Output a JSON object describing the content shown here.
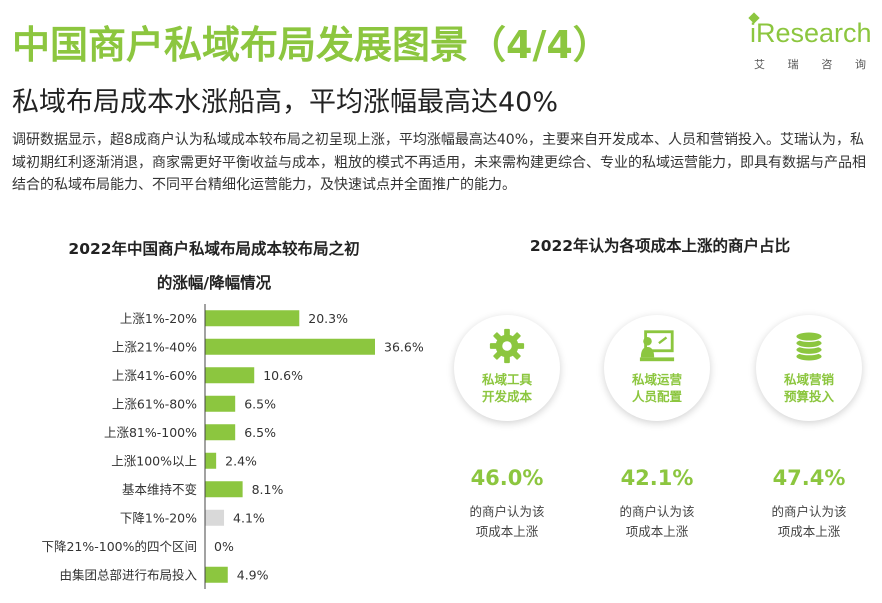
{
  "header": {
    "title": "中国商户私域布局发展图景（4/4）",
    "subtitle": "私域布局成本水涨船高，平均涨幅最高达40%"
  },
  "logo": {
    "wordmark": "iResearch",
    "cn_chars": [
      "艾",
      "瑞",
      "咨",
      "询"
    ]
  },
  "intro": "调研数据显示，超8成商户认为私域成本较布局之初呈现上涨，平均涨幅最高达40%，主要来自开发成本、人员和营销投入。艾瑞认为，私域初期红利逐渐消退，商家需更好平衡收益与成本，粗放的模式不再适用，未来需构建更综合、专业的私域运营能力，即具有数据与产品相结合的私域布局能力、不同平台精细化运营能力，及快速试点并全面推广的能力。",
  "colors": {
    "accent": "#8cc63f",
    "decline": "#d9d9d9",
    "axis": "#444444"
  },
  "chart_data": [
    {
      "type": "bar",
      "orientation": "horizontal",
      "title": "2022年中国商户私域布局成本较布局之初的涨幅/降幅情况",
      "title_lines": [
        "2022年中国商户私域布局成本较布局之初",
        "的涨幅/降幅情况"
      ],
      "categories": [
        "上涨1%-20%",
        "上涨21%-40%",
        "上涨41%-60%",
        "上涨61%-80%",
        "上涨81%-100%",
        "上涨100%以上",
        "基本维持不变",
        "下降1%-20%",
        "下降21%-100%的四个区间",
        "由集团总部进行布局投入"
      ],
      "values": [
        20.3,
        36.6,
        10.6,
        6.5,
        6.5,
        2.4,
        8.1,
        4.1,
        0,
        4.9
      ],
      "labels": [
        "20.3%",
        "36.6%",
        "10.6%",
        "6.5%",
        "6.5%",
        "2.4%",
        "8.1%",
        "4.1%",
        "0%",
        "4.9%"
      ],
      "bar_colors": [
        "#8cc63f",
        "#8cc63f",
        "#8cc63f",
        "#8cc63f",
        "#8cc63f",
        "#8cc63f",
        "#8cc63f",
        "#d9d9d9",
        "#d9d9d9",
        "#8cc63f"
      ],
      "xlim": [
        0,
        40
      ]
    },
    {
      "type": "table",
      "title": "2022年认为各项成本上涨的商户占比",
      "items": [
        {
          "label_lines": [
            "私域工具",
            "开发成本"
          ],
          "icon": "gear-icon",
          "value": 46.0,
          "value_text": "46.0%",
          "note_lines": [
            "的商户认为该",
            "项成本上涨"
          ]
        },
        {
          "label_lines": [
            "私域运营",
            "人员配置"
          ],
          "icon": "presenter-icon",
          "value": 42.1,
          "value_text": "42.1%",
          "note_lines": [
            "的商户认为该",
            "项成本上涨"
          ]
        },
        {
          "label_lines": [
            "私域营销",
            "预算投入"
          ],
          "icon": "coins-icon",
          "value": 47.4,
          "value_text": "47.4%",
          "note_lines": [
            "的商户认为该",
            "项成本上涨"
          ]
        }
      ]
    }
  ]
}
